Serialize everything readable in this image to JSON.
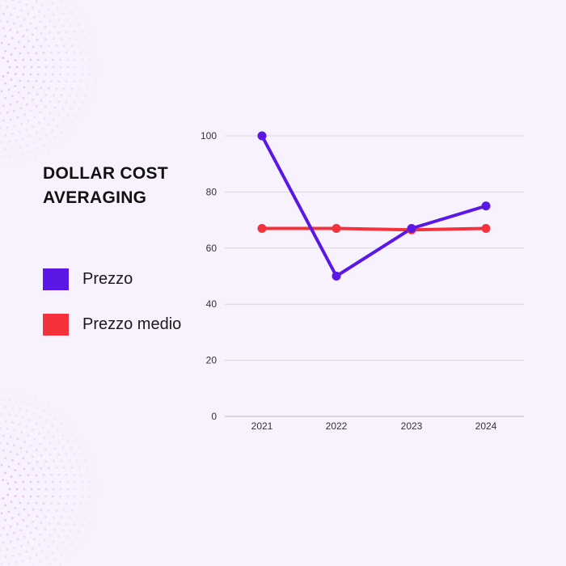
{
  "title_lines": [
    "DOLLAR COST",
    "AVERAGING"
  ],
  "legend": [
    {
      "label": "Prezzo",
      "color": "#5b17e6"
    },
    {
      "label": "Prezzo medio",
      "color": "#f5323c"
    }
  ],
  "colors": {
    "background": "#f7f2fd",
    "grid": "#d9d6df",
    "axis_text": "#333333",
    "decor_dots": "#e6a6e4"
  },
  "chart_data": {
    "type": "line",
    "categories": [
      "2021",
      "2022",
      "2023",
      "2024"
    ],
    "series": [
      {
        "name": "Prezzo",
        "color": "#5b17e6",
        "values": [
          100,
          50,
          67,
          75
        ]
      },
      {
        "name": "Prezzo medio",
        "color": "#f5323c",
        "values": [
          67,
          67,
          66.5,
          67
        ]
      }
    ],
    "yticks": [
      0,
      20,
      40,
      60,
      80,
      100
    ],
    "ylim": [
      0,
      100
    ],
    "grid": true,
    "legend_position": "left"
  }
}
